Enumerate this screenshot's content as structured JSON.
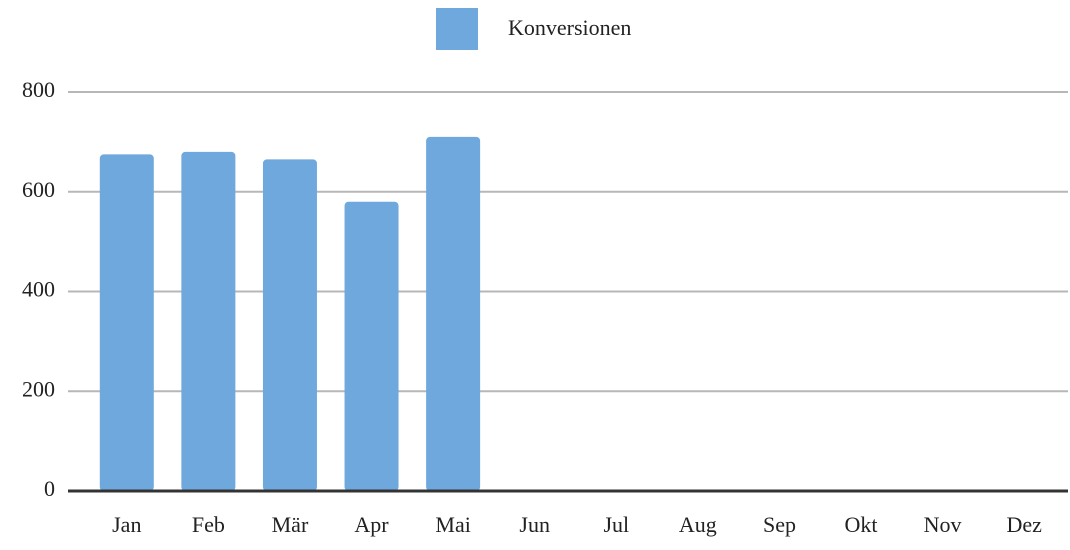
{
  "chart_data": {
    "type": "bar",
    "categories": [
      "Jan",
      "Feb",
      "Mär",
      "Apr",
      "Mai",
      "Jun",
      "Jul",
      "Aug",
      "Sep",
      "Okt",
      "Nov",
      "Dez"
    ],
    "series": [
      {
        "name": "Konversionen",
        "color": "#6fa8dc",
        "values": [
          675,
          680,
          665,
          580,
          710,
          null,
          null,
          null,
          null,
          null,
          null,
          null
        ]
      }
    ],
    "ylim": [
      0,
      800
    ],
    "yticks": [
      0,
      200,
      400,
      600,
      800
    ],
    "grid": true,
    "legend": "top"
  }
}
